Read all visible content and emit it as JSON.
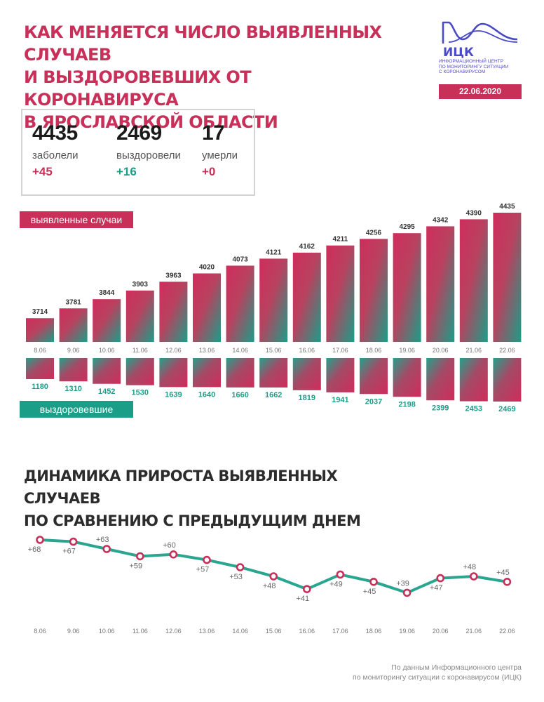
{
  "header": {
    "title_lines": [
      "КАК МЕНЯЕТСЯ ЧИСЛО ВЫЯВЛЕННЫХ СЛУЧАЕВ",
      "И ВЫЗДОРОВЕВШИХ ОТ КОРОНАВИРУСА",
      "В ЯРОСЛАВСКОЙ ОБЛАСТИ"
    ]
  },
  "logo": {
    "name": "ИЦК",
    "subtitle_lines": [
      "Информационный центр",
      "по мониторингу ситуации",
      "с коронавирусом"
    ],
    "icon": "wave-curve-icon"
  },
  "date": "22.06.2020",
  "stats": [
    {
      "value": "4435",
      "label": "заболели",
      "delta": "+45",
      "color": "red"
    },
    {
      "value": "2469",
      "label": "выздоровели",
      "delta": "+16",
      "color": "green"
    },
    {
      "value": "17",
      "label": "умерли",
      "delta": "+0",
      "color": "red"
    }
  ],
  "colors": {
    "accent_red": "#c8305a",
    "accent_teal": "#1a9e88",
    "line": "#2aa58f",
    "marker": "#c8305a",
    "logo": "#4a49c8"
  },
  "chart_data": [
    {
      "type": "bar",
      "categories": [
        "8.06",
        "9.06",
        "10.06",
        "11.06",
        "12.06",
        "13.06",
        "14.06",
        "15.06",
        "16.06",
        "17.06",
        "18.06",
        "19.06",
        "20.06",
        "21.06",
        "22.06"
      ],
      "series": [
        {
          "name": "выявленные случаи",
          "values": [
            3714,
            3781,
            3844,
            3903,
            3963,
            4020,
            4073,
            4121,
            4162,
            4211,
            4256,
            4295,
            4342,
            4390,
            4435
          ]
        },
        {
          "name": "выздоровевшие",
          "values": [
            1180,
            1310,
            1452,
            1530,
            1639,
            1640,
            1660,
            1662,
            1819,
            1941,
            2037,
            2198,
            2399,
            2453,
            2469
          ]
        }
      ],
      "legend": [
        "выявленные случаи",
        "выздоровевшие"
      ]
    },
    {
      "type": "line",
      "title_lines": [
        "ДИНАМИКА ПРИРОСТА ВЫЯВЛЕННЫХ СЛУЧАЕВ",
        "ПО СРАВНЕНИЮ С ПРЕДЫДУЩИМ ДНЕМ"
      ],
      "categories": [
        "8.06",
        "9.06",
        "10.06",
        "11.06",
        "12.06",
        "13.06",
        "14.06",
        "15.06",
        "16.06",
        "17.06",
        "18.06",
        "19.06",
        "20.06",
        "21.06",
        "22.06"
      ],
      "values": [
        68,
        67,
        63,
        59,
        60,
        57,
        53,
        48,
        41,
        49,
        45,
        39,
        47,
        48,
        45
      ],
      "labels": [
        "+68",
        "+67",
        "+63",
        "+59",
        "+60",
        "+57",
        "+53",
        "+48",
        "+41",
        "+49",
        "+45",
        "+39",
        "+47",
        "+48",
        "+45"
      ]
    }
  ],
  "source_lines": [
    "По данным Информационного центра",
    "по мониторингу ситуации с коронавирусом (ИЦК)"
  ]
}
